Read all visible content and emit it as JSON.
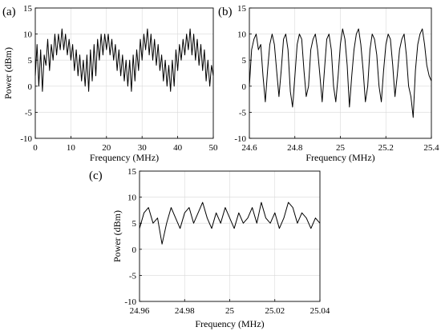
{
  "chart_data": [
    {
      "type": "line",
      "panel_label": "(a)",
      "xlabel": "Frequency (MHz)",
      "ylabel": "Power (dBm)",
      "xlim": [
        0,
        50
      ],
      "ylim": [
        -10,
        15
      ],
      "xticks": [
        0,
        10,
        20,
        30,
        40,
        50
      ],
      "xtick_labels": [
        "0",
        "10",
        "20",
        "30",
        "40",
        "50"
      ],
      "yticks": [
        -10,
        -5,
        0,
        5,
        10,
        15
      ],
      "ytick_labels": [
        "-10",
        "-5",
        "0",
        "5",
        "10",
        "15"
      ],
      "grid": true,
      "series": [
        {
          "x": [
            0,
            0.5,
            1,
            1.5,
            2,
            2.5,
            3,
            3.5,
            4,
            4.5,
            5,
            5.5,
            6,
            6.5,
            7,
            7.5,
            8,
            8.5,
            9,
            9.5,
            10,
            10.5,
            11,
            11.5,
            12,
            12.5,
            13,
            13.5,
            14,
            14.5,
            15,
            15.5,
            16,
            16.5,
            17,
            17.5,
            18,
            18.5,
            19,
            19.5,
            20,
            20.5,
            21,
            21.5,
            22,
            22.5,
            23,
            23.5,
            24,
            24.5,
            25,
            25.5,
            26,
            26.5,
            27,
            27.5,
            28,
            28.5,
            29,
            29.5,
            30,
            30.5,
            31,
            31.5,
            32,
            32.5,
            33,
            33.5,
            34,
            34.5,
            35,
            35.5,
            36,
            36.5,
            37,
            37.5,
            38,
            38.5,
            39,
            39.5,
            40,
            40.5,
            41,
            41.5,
            42,
            42.5,
            43,
            43.5,
            44,
            44.5,
            45,
            45.5,
            46,
            46.5,
            47,
            47.5,
            48,
            48.5,
            49,
            49.5,
            50
          ],
          "y": [
            2,
            8,
            0,
            7,
            -1,
            6,
            4,
            9,
            3,
            8,
            5,
            10,
            6,
            10,
            7,
            11,
            7,
            10,
            6,
            9,
            5,
            8,
            3,
            7,
            2,
            6,
            1,
            5,
            0,
            6,
            -1,
            7,
            1,
            8,
            2,
            9,
            5,
            10,
            6,
            10,
            7,
            10,
            6,
            9,
            5,
            8,
            3,
            7,
            2,
            6,
            1,
            5,
            0,
            5,
            -1,
            6,
            1,
            7,
            3,
            9,
            5,
            10,
            7,
            11,
            6,
            10,
            5,
            9,
            4,
            8,
            3,
            6,
            1,
            5,
            0,
            4,
            -1,
            5,
            0,
            7,
            3,
            8,
            5,
            9,
            6,
            10,
            7,
            11,
            6,
            10,
            5,
            9,
            4,
            8,
            3,
            7,
            1,
            5,
            0,
            4,
            2
          ]
        }
      ]
    },
    {
      "type": "line",
      "panel_label": "(b)",
      "xlabel": "Frequency (MHz)",
      "ylabel": "",
      "xlim": [
        24.6,
        25.4
      ],
      "ylim": [
        -10,
        15
      ],
      "xticks": [
        24.6,
        24.8,
        25.0,
        25.2,
        25.4
      ],
      "xtick_labels": [
        "24.6",
        "24.8",
        "25",
        "25.2",
        "25.4"
      ],
      "yticks": [
        -10,
        -5,
        0,
        5,
        10,
        15
      ],
      "ytick_labels": [
        "-10",
        "-5",
        "0",
        "5",
        "10",
        "15"
      ],
      "grid": true,
      "series": [
        {
          "x": [
            24.6,
            24.61,
            24.62,
            24.63,
            24.64,
            24.65,
            24.66,
            24.67,
            24.68,
            24.69,
            24.7,
            24.71,
            24.72,
            24.73,
            24.74,
            24.75,
            24.76,
            24.77,
            24.78,
            24.79,
            24.8,
            24.81,
            24.82,
            24.83,
            24.84,
            24.85,
            24.86,
            24.87,
            24.88,
            24.89,
            24.9,
            24.91,
            24.92,
            24.93,
            24.94,
            24.95,
            24.96,
            24.97,
            24.98,
            24.99,
            25.0,
            25.01,
            25.02,
            25.03,
            25.04,
            25.05,
            25.06,
            25.07,
            25.08,
            25.09,
            25.1,
            25.11,
            25.12,
            25.13,
            25.14,
            25.15,
            25.16,
            25.17,
            25.18,
            25.19,
            25.2,
            25.21,
            25.22,
            25.23,
            25.24,
            25.25,
            25.26,
            25.27,
            25.28,
            25.29,
            25.3,
            25.31,
            25.32,
            25.33,
            25.34,
            25.35,
            25.36,
            25.37,
            25.38,
            25.39,
            25.4
          ],
          "y": [
            0,
            7,
            9,
            10,
            7,
            8,
            2,
            -3,
            3,
            8,
            10,
            8,
            3,
            -2,
            3,
            9,
            10,
            7,
            -1,
            -4,
            2,
            8,
            10,
            9,
            3,
            -2,
            0,
            7,
            9,
            10,
            7,
            2,
            -3,
            3,
            9,
            10,
            7,
            0,
            -3,
            2,
            8,
            11,
            9,
            4,
            -4,
            2,
            7,
            10,
            11,
            8,
            3,
            -3,
            0,
            7,
            10,
            9,
            6,
            0,
            -3,
            3,
            8,
            10,
            9,
            4,
            -2,
            2,
            7,
            9,
            10,
            6,
            0,
            -2,
            -6,
            3,
            8,
            10,
            11,
            8,
            4,
            2,
            1
          ]
        }
      ]
    },
    {
      "type": "line",
      "panel_label": "(c)",
      "xlabel": "Frequency (MHz)",
      "ylabel": "Power (dBm)",
      "xlim": [
        24.96,
        25.04
      ],
      "ylim": [
        -10,
        15
      ],
      "xticks": [
        24.96,
        24.98,
        25.0,
        25.02,
        25.04
      ],
      "xtick_labels": [
        "24.96",
        "24.98",
        "25",
        "25.02",
        "25.04"
      ],
      "yticks": [
        -10,
        -5,
        0,
        5,
        10,
        15
      ],
      "ytick_labels": [
        "-10",
        "-5",
        "0",
        "5",
        "10",
        "15"
      ],
      "grid": true,
      "series": [
        {
          "x": [
            24.96,
            24.962,
            24.964,
            24.966,
            24.968,
            24.97,
            24.972,
            24.974,
            24.976,
            24.978,
            24.98,
            24.982,
            24.984,
            24.986,
            24.988,
            24.99,
            24.992,
            24.994,
            24.996,
            24.998,
            25.0,
            25.002,
            25.004,
            25.006,
            25.008,
            25.01,
            25.012,
            25.014,
            25.016,
            25.018,
            25.02,
            25.022,
            25.024,
            25.026,
            25.028,
            25.03,
            25.032,
            25.034,
            25.036,
            25.038,
            25.04
          ],
          "y": [
            4,
            7,
            8,
            5,
            6,
            1,
            5,
            8,
            6,
            4,
            7,
            8,
            5,
            7,
            9,
            6,
            4,
            7,
            5,
            8,
            6,
            4,
            7,
            5,
            6,
            8,
            5,
            9,
            6,
            5,
            7,
            4,
            6,
            9,
            8,
            5,
            7,
            6,
            4,
            6,
            5
          ]
        }
      ]
    }
  ]
}
